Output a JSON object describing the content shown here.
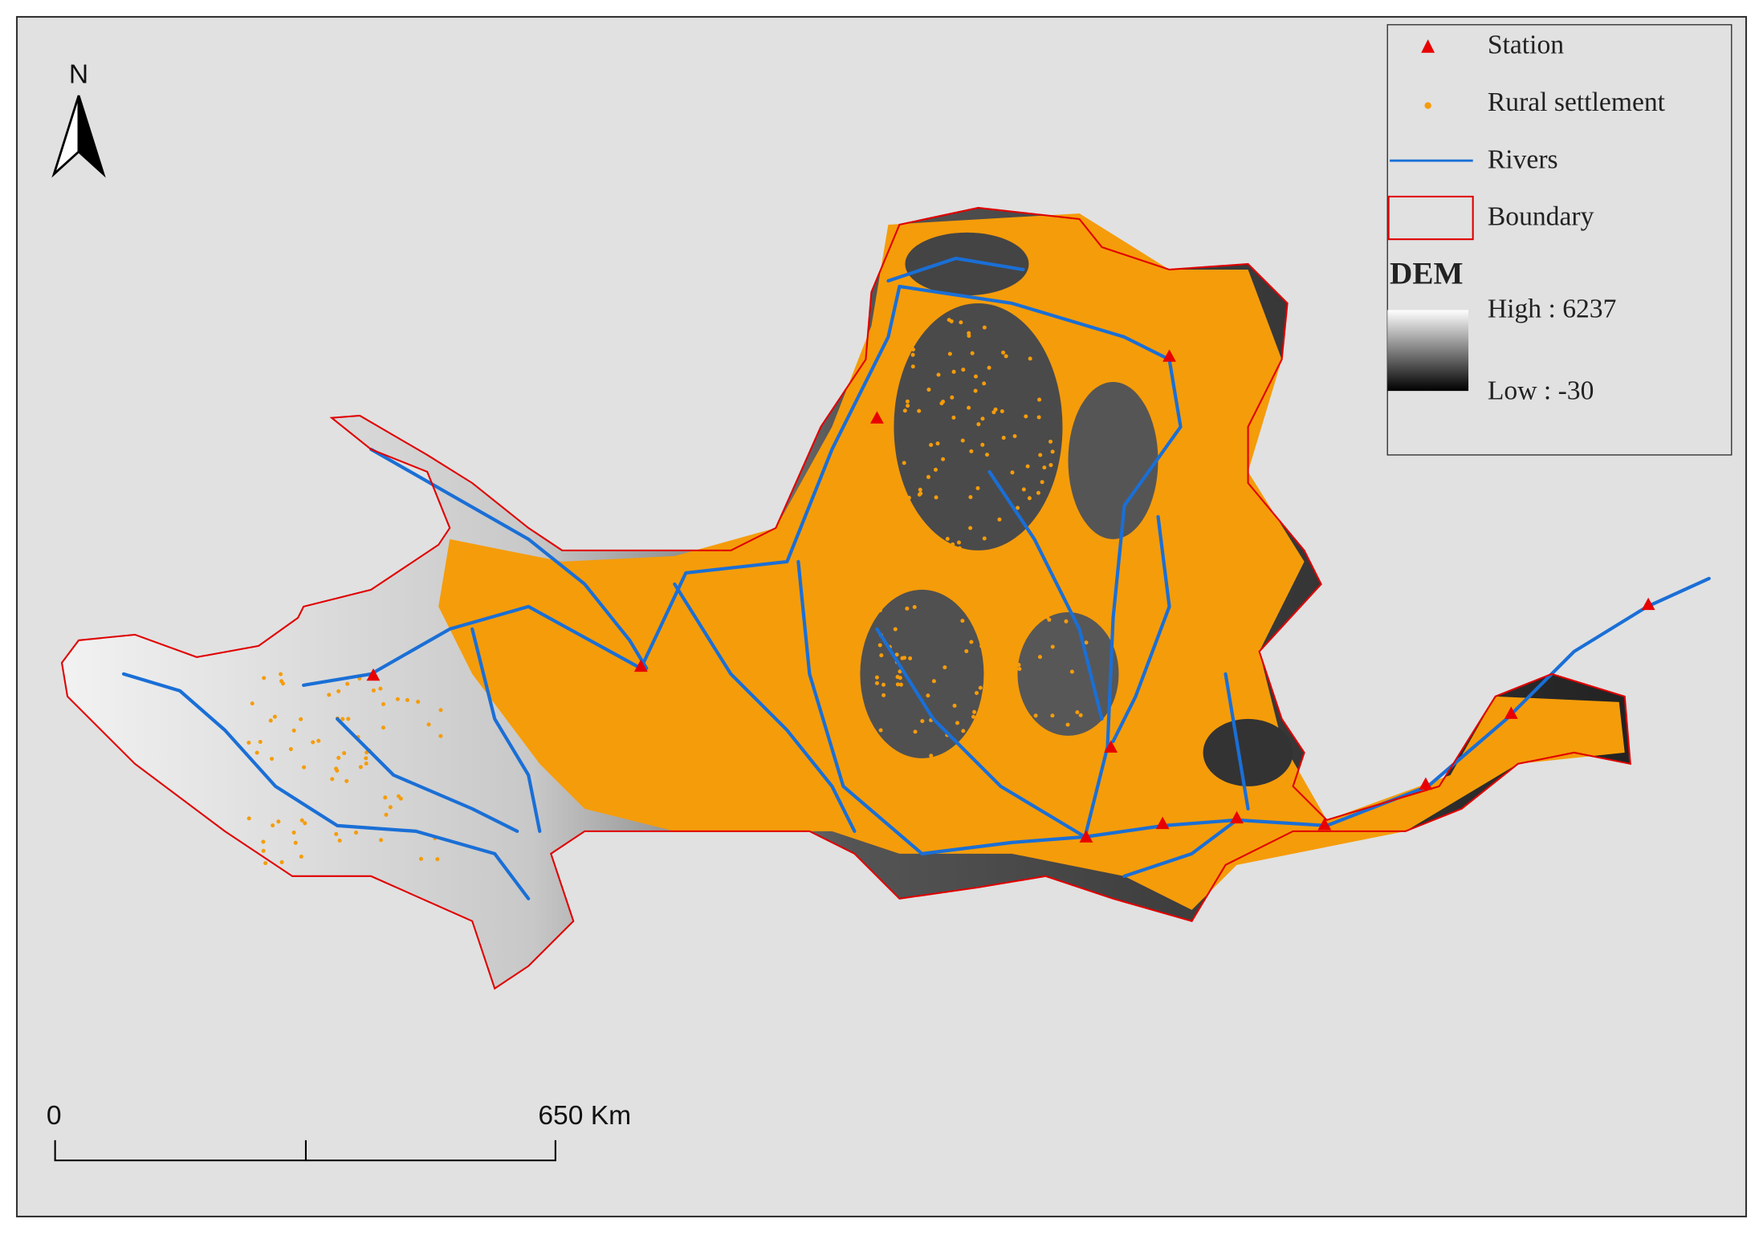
{
  "north_arrow": {
    "label": "N"
  },
  "legend": {
    "items": [
      {
        "label": "Station"
      },
      {
        "label": "Rural settlement"
      },
      {
        "label": "Rivers"
      },
      {
        "label": "Boundary"
      }
    ],
    "dem": {
      "title": "DEM",
      "high": "High : 6237",
      "low": "Low : -30"
    }
  },
  "scale_bar": {
    "labels": [
      "0",
      "650 Km"
    ]
  }
}
